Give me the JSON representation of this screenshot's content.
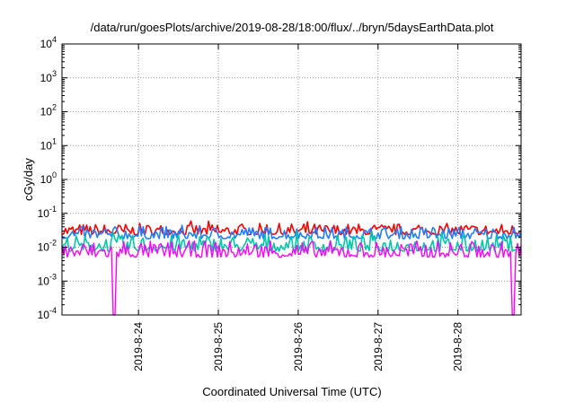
{
  "chart_data": {
    "type": "line",
    "title": "/data/run/goesPlots/archive/2019-08-28/18:00/flux/../bryn/5daysEarthData.plot",
    "xlabel": "Coordinated Universal Time (UTC)",
    "ylabel": "cGy/day",
    "y_scale": "log",
    "ylim": [
      0.0001,
      10000
    ],
    "y_ticks": [
      {
        "value": 0.0001,
        "base": "10",
        "exp": "-4"
      },
      {
        "value": 0.001,
        "base": "10",
        "exp": "-3"
      },
      {
        "value": 0.01,
        "base": "10",
        "exp": "-2"
      },
      {
        "value": 0.1,
        "base": "10",
        "exp": "-1"
      },
      {
        "value": 1,
        "base": "10",
        "exp": "0"
      },
      {
        "value": 10,
        "base": "10",
        "exp": "1"
      },
      {
        "value": 100,
        "base": "10",
        "exp": "2"
      },
      {
        "value": 1000,
        "base": "10",
        "exp": "3"
      },
      {
        "value": 10000,
        "base": "10",
        "exp": "4"
      }
    ],
    "xlim": [
      "2019-08-23T01:00",
      "2019-08-28T19:00"
    ],
    "x_ticks": [
      {
        "value": "2019-08-24T00:00",
        "label": "2019-8-24"
      },
      {
        "value": "2019-08-25T00:00",
        "label": "2019-8-25"
      },
      {
        "value": "2019-08-26T00:00",
        "label": "2019-8-26"
      },
      {
        "value": "2019-08-27T00:00",
        "label": "2019-8-27"
      },
      {
        "value": "2019-08-28T00:00",
        "label": "2019-8-28"
      }
    ],
    "grid": true,
    "legend": "none",
    "series": [
      {
        "color": "#ff0000",
        "typical_low": 0.02,
        "typical_high": 0.06
      },
      {
        "color": "#1e7fff",
        "typical_low": 0.015,
        "typical_high": 0.05
      },
      {
        "color": "#00c9a7",
        "typical_low": 0.006,
        "typical_high": 0.03
      },
      {
        "color": "#ff00ff",
        "typical_low": 0.004,
        "typical_high": 0.02,
        "dropouts": [
          "2019-08-23T16:45",
          "2019-08-28T16:30"
        ]
      }
    ]
  }
}
